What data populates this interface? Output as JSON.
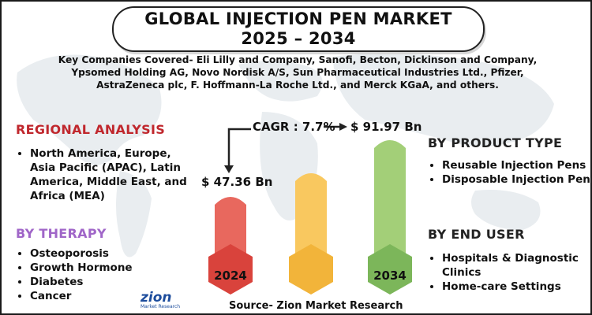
{
  "title": {
    "line1": "GLOBAL INJECTION PEN MARKET",
    "line2": "2025 – 2034"
  },
  "companies": "Key Companies Covered- Eli Lilly and Company, Sanofi, Becton, Dickinson and Company, Ypsomed Holding AG, Novo Nordisk A/S, Sun Pharmaceutical Industries Ltd., Pfizer, AstraZeneca plc, F. Hoffmann-La Roche Ltd., and Merck KGaA, and others.",
  "regional": {
    "heading": "REGIONAL ANALYSIS",
    "items": [
      "North America, Europe, Asia Pacific (APAC), Latin America, Middle East, and Africa (MEA)"
    ]
  },
  "therapy": {
    "heading": "BY THERAPY",
    "items": [
      "Osteoporosis",
      "Growth Hormone",
      "Diabetes",
      "Cancer"
    ]
  },
  "product_type": {
    "heading": "BY PRODUCT TYPE",
    "items": [
      "Reusable Injection Pens",
      "Disposable Injection Pens"
    ]
  },
  "end_user": {
    "heading": "BY END USER",
    "items": [
      "Hospitals & Diagnostic Clinics",
      "Home-care Settings"
    ]
  },
  "growth": {
    "cagr": "CAGR : 7.7%",
    "start_value": "$ 47.36 Bn",
    "end_value": "$ 91.97 Bn",
    "start_year": "2024",
    "end_year": "2034"
  },
  "bars": [
    {
      "color": "#e8685e",
      "hex_color": "#d9433c"
    },
    {
      "color": "#f9c85f",
      "hex_color": "#f2b43a"
    },
    {
      "color": "#a3cf78",
      "hex_color": "#7cb65a"
    }
  ],
  "source": "Source- Zion Market Research",
  "logo": {
    "word": "zion",
    "sub": "Market Research"
  }
}
